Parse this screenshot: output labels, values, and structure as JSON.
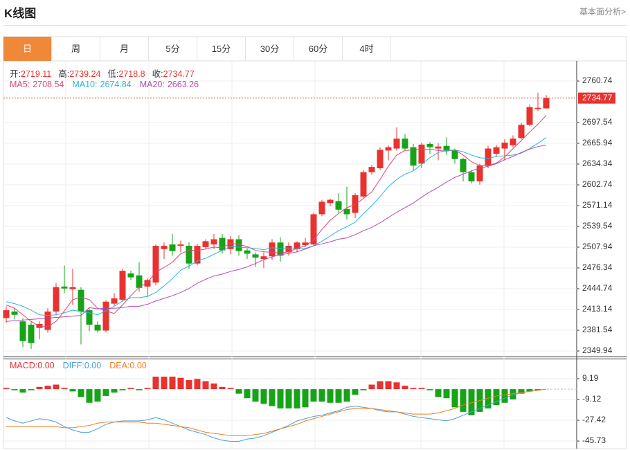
{
  "header": {
    "title": "K线图",
    "link": "基本面分析>"
  },
  "tabs": [
    {
      "label": "日",
      "active": true
    },
    {
      "label": "周",
      "active": false
    },
    {
      "label": "月",
      "active": false
    },
    {
      "label": "5分",
      "active": false
    },
    {
      "label": "15分",
      "active": false
    },
    {
      "label": "30分",
      "active": false
    },
    {
      "label": "60分",
      "active": false
    },
    {
      "label": "4时",
      "active": false
    }
  ],
  "chart_data": [
    {
      "type": "candlestick",
      "up_color": "#e8322f",
      "down_color": "#16a318",
      "grid": true,
      "quote_labels": [
        "开:",
        "高:",
        "低:",
        "收:"
      ],
      "open": [
        2400,
        2410,
        2395,
        2390,
        2385,
        2382,
        2410,
        2448,
        2444,
        2443,
        2412,
        2390,
        2381,
        2422,
        2428,
        2468,
        2465,
        2448,
        2454,
        2505,
        2512,
        2510,
        2510,
        2483,
        2508,
        2512,
        2522,
        2505,
        2520,
        2503,
        2497,
        2490,
        2494,
        2515,
        2500,
        2505,
        2511,
        2512,
        2558,
        2575,
        2578,
        2566,
        2560,
        2585,
        2622,
        2628,
        2655,
        2658,
        2673,
        2660,
        2635,
        2665,
        2658,
        2662,
        2655,
        2642,
        2622,
        2608,
        2632,
        2650,
        2658,
        2663,
        2674,
        2694,
        2718,
        2719.11
      ],
      "high": [
        2418,
        2415,
        2400,
        2395,
        2395,
        2415,
        2453,
        2480,
        2475,
        2447,
        2415,
        2395,
        2427,
        2438,
        2475,
        2472,
        2485,
        2460,
        2512,
        2515,
        2528,
        2518,
        2515,
        2513,
        2520,
        2528,
        2528,
        2525,
        2526,
        2506,
        2500,
        2500,
        2520,
        2523,
        2515,
        2517,
        2522,
        2560,
        2580,
        2582,
        2590,
        2600,
        2590,
        2625,
        2633,
        2660,
        2663,
        2690,
        2680,
        2665,
        2667,
        2668,
        2666,
        2675,
        2658,
        2644,
        2625,
        2635,
        2662,
        2664,
        2672,
        2678,
        2697,
        2725,
        2743,
        2739.24
      ],
      "low": [
        2392,
        2398,
        2356,
        2353,
        2368,
        2378,
        2405,
        2438,
        2420,
        2360,
        2380,
        2378,
        2378,
        2418,
        2425,
        2458,
        2440,
        2432,
        2450,
        2490,
        2495,
        2500,
        2475,
        2480,
        2505,
        2505,
        2498,
        2497,
        2495,
        2490,
        2478,
        2476,
        2488,
        2486,
        2495,
        2500,
        2508,
        2510,
        2555,
        2570,
        2560,
        2550,
        2552,
        2583,
        2618,
        2625,
        2640,
        2655,
        2655,
        2625,
        2628,
        2650,
        2640,
        2648,
        2635,
        2608,
        2605,
        2603,
        2628,
        2645,
        2640,
        2660,
        2672,
        2692,
        2715,
        2718.8
      ],
      "close": [
        2412,
        2405,
        2365,
        2362,
        2391,
        2410,
        2447,
        2445,
        2447,
        2410,
        2390,
        2381,
        2425,
        2430,
        2472,
        2462,
        2446,
        2458,
        2510,
        2510,
        2502,
        2512,
        2483,
        2510,
        2517,
        2520,
        2503,
        2520,
        2502,
        2498,
        2492,
        2494,
        2515,
        2495,
        2510,
        2515,
        2515,
        2558,
        2577,
        2580,
        2565,
        2558,
        2587,
        2622,
        2630,
        2656,
        2660,
        2673,
        2658,
        2632,
        2664,
        2660,
        2661,
        2655,
        2642,
        2622,
        2608,
        2632,
        2658,
        2660,
        2667,
        2673,
        2694,
        2721,
        2720,
        2734.77
      ],
      "moving_averages": [
        {
          "name": "MA5:",
          "color": "#e0457b",
          "values": [
            2420,
            2415,
            2405,
            2395,
            2387,
            2387,
            2395,
            2411,
            2428,
            2432,
            2428,
            2415,
            2411,
            2407,
            2420,
            2434,
            2447,
            2454,
            2470,
            2477,
            2485,
            2498,
            2503,
            2503,
            2505,
            2508,
            2507,
            2514,
            2512,
            2509,
            2503,
            2501,
            2500,
            2499,
            2501,
            2506,
            2510,
            2519,
            2535,
            2549,
            2559,
            2568,
            2573,
            2582,
            2592,
            2611,
            2631,
            2648,
            2655,
            2656,
            2657,
            2657,
            2655,
            2654,
            2656,
            2648,
            2638,
            2632,
            2632,
            2636,
            2645,
            2658,
            2670,
            2683,
            2695,
            2708.54
          ]
        },
        {
          "name": "MA10:",
          "color": "#2fb3d8",
          "values": [
            2425,
            2422,
            2418,
            2412,
            2405,
            2404,
            2405,
            2408,
            2412,
            2410,
            2408,
            2405,
            2411,
            2418,
            2426,
            2431,
            2431,
            2433,
            2439,
            2449,
            2460,
            2473,
            2479,
            2487,
            2491,
            2497,
            2503,
            2509,
            2508,
            2507,
            2506,
            2504,
            2507,
            2506,
            2505,
            2505,
            2506,
            2510,
            2517,
            2525,
            2533,
            2539,
            2546,
            2559,
            2571,
            2585,
            2600,
            2611,
            2619,
            2624,
            2634,
            2644,
            2652,
            2655,
            2656,
            2653,
            2648,
            2644,
            2643,
            2646,
            2647,
            2648,
            2651,
            2658,
            2666,
            2674.84
          ]
        },
        {
          "name": "MA20:",
          "color": "#b04ab5",
          "values": [
            2395,
            2396,
            2397,
            2398,
            2399,
            2400,
            2401,
            2402,
            2403,
            2404,
            2416,
            2414,
            2415,
            2415,
            2416,
            2418,
            2418,
            2421,
            2426,
            2430,
            2434,
            2439,
            2445,
            2453,
            2459,
            2464,
            2467,
            2471,
            2474,
            2478,
            2483,
            2489,
            2493,
            2497,
            2498,
            2501,
            2505,
            2510,
            2513,
            2516,
            2520,
            2522,
            2527,
            2533,
            2538,
            2545,
            2553,
            2561,
            2568,
            2575,
            2584,
            2592,
            2599,
            2607,
            2614,
            2619,
            2624,
            2628,
            2631,
            2635,
            2641,
            2646,
            2652,
            2657,
            2661,
            2663.26
          ]
        }
      ],
      "ylim": [
        2341.5,
        2791.3
      ],
      "yticks": [
        2349.94,
        2381.54,
        2413.14,
        2444.74,
        2476.34,
        2507.94,
        2539.54,
        2571.14,
        2602.74,
        2634.34,
        2665.94,
        2697.54,
        2760.74
      ]
    },
    {
      "type": "macd",
      "up_color": "#e8322f",
      "down_color": "#16a318",
      "grid": true,
      "series": [
        {
          "name": "MACD:",
          "style": "bar",
          "color": "#e8322f",
          "value_label": "0.00",
          "values": [
            1,
            -1,
            -3,
            -1,
            2,
            3,
            4,
            1,
            -2,
            -7,
            -12,
            -11,
            -6,
            -3,
            -1,
            1,
            -1,
            1,
            11,
            11,
            11,
            10,
            8,
            9,
            7,
            5,
            2,
            1,
            -4,
            -8,
            -11,
            -13,
            -15,
            -17,
            -17,
            -17,
            -16,
            -11,
            -11,
            -12,
            -12,
            -11,
            -5,
            -1,
            4,
            7,
            7,
            6,
            3,
            1,
            1,
            -1,
            -7,
            -8,
            -16,
            -20,
            -23,
            -20,
            -17,
            -14,
            -12,
            -9,
            -4,
            -2,
            -1,
            0
          ]
        },
        {
          "name": "DIFF:",
          "style": "line",
          "color": "#4a9de0",
          "value_label": "0.00",
          "values": [
            -25,
            -28,
            -30,
            -28,
            -26,
            -27,
            -29,
            -33,
            -36,
            -38,
            -38,
            -35,
            -31,
            -29,
            -28,
            -28,
            -28,
            -27,
            -25,
            -27,
            -30,
            -33,
            -36,
            -38,
            -40,
            -43,
            -45,
            -46,
            -46,
            -44,
            -43,
            -41,
            -38,
            -35,
            -32,
            -28,
            -26,
            -24,
            -23,
            -21,
            -19,
            -16,
            -15,
            -16,
            -17,
            -19,
            -20,
            -20,
            -22,
            -24,
            -25,
            -26,
            -27,
            -28,
            -26,
            -23,
            -20,
            -17,
            -14,
            -11,
            -8,
            -5,
            -3,
            -2,
            -1,
            0
          ]
        },
        {
          "name": "DEA:",
          "style": "line",
          "color": "#f07f1e",
          "value_label": "0.00",
          "values": [
            -33,
            -33,
            -33,
            -33,
            -33,
            -33,
            -33,
            -34,
            -34,
            -33,
            -32,
            -30,
            -29,
            -29,
            -29,
            -29,
            -29,
            -30,
            -30,
            -31,
            -32,
            -33,
            -34,
            -36,
            -38,
            -39,
            -40,
            -41,
            -41,
            -41,
            -40,
            -39,
            -37,
            -35,
            -33,
            -31,
            -28,
            -26,
            -24,
            -22,
            -20,
            -18,
            -17,
            -17,
            -17,
            -18,
            -19,
            -20,
            -21,
            -22,
            -22,
            -22,
            -21,
            -19,
            -17,
            -14,
            -12,
            -10,
            -8,
            -6,
            -5,
            -4,
            -3,
            -2,
            -1,
            0
          ]
        }
      ],
      "ylim": [
        -52.4,
        26.9
      ],
      "yticks": [
        -45.73,
        -27.42,
        -9.12,
        9.19
      ]
    }
  ]
}
